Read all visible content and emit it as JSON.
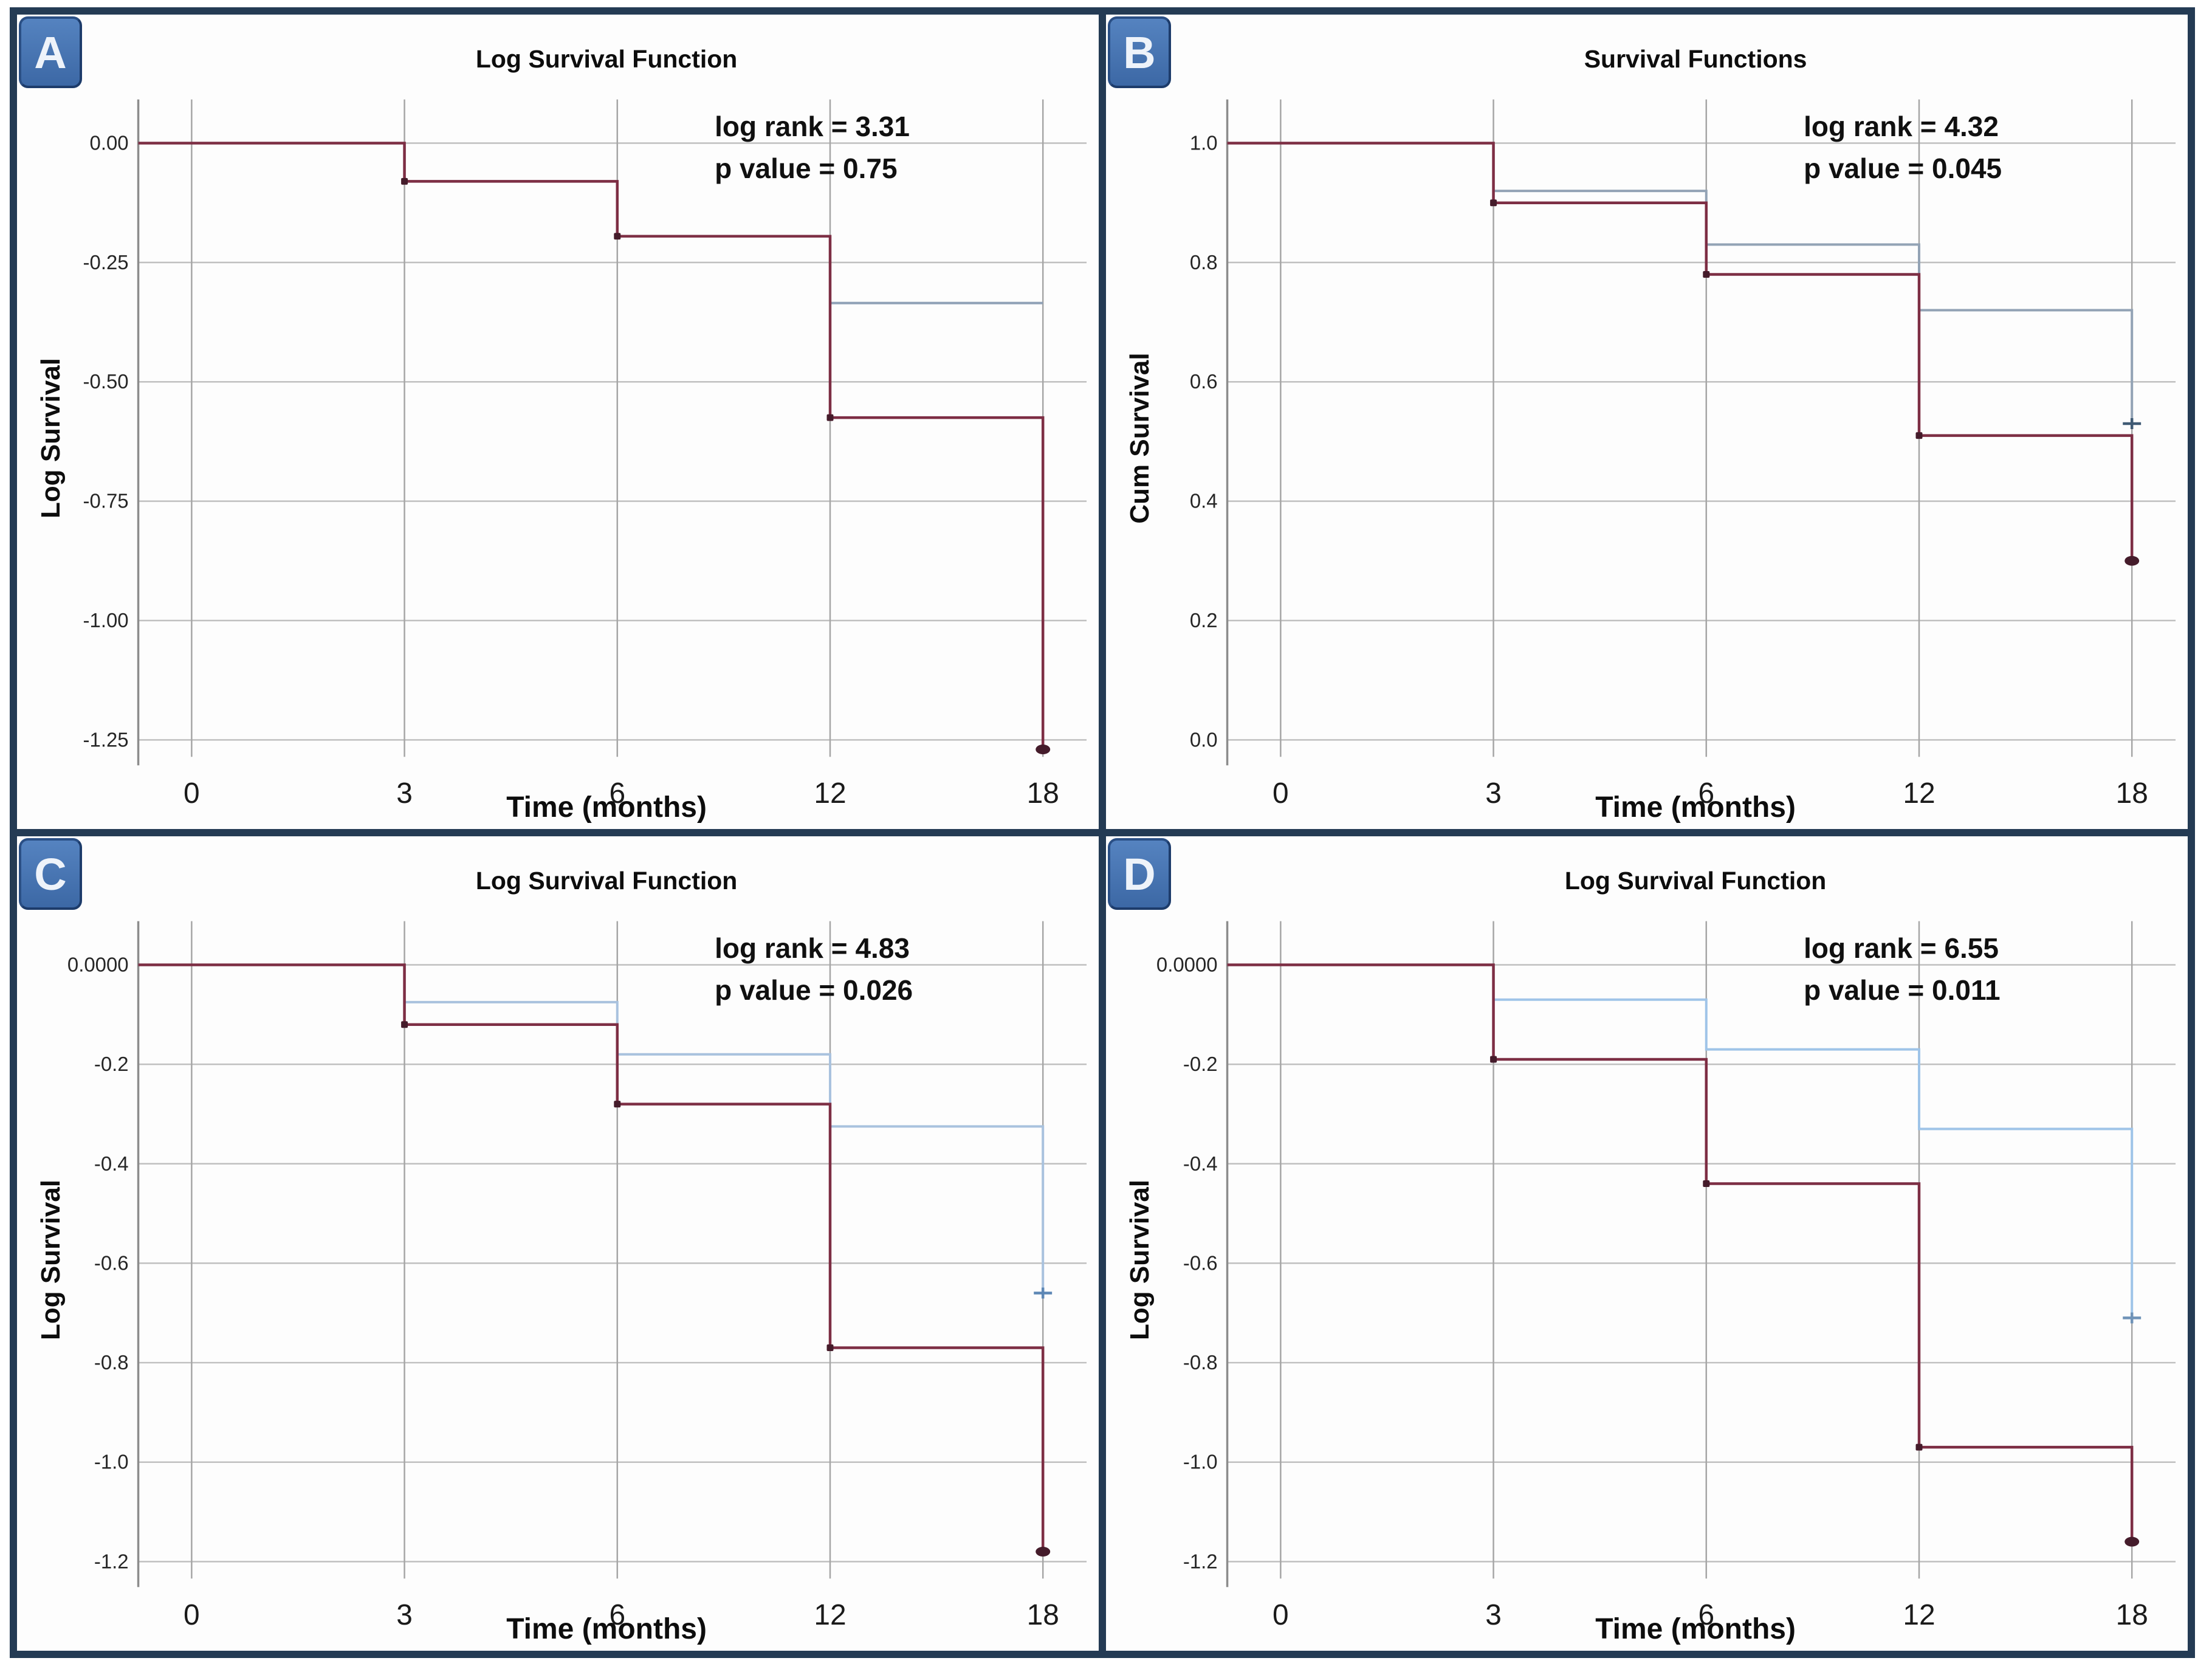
{
  "colors": {
    "frame": "#243b54",
    "badge_fill": "#4273b0",
    "badge_border": "#2a4f85",
    "h_gridline": "#c0c0c0",
    "v_gridline": "#a6a6a6",
    "axis": "#8c8c8c",
    "tick_text": "#262626",
    "red_curve": "#7d2e44",
    "marker_dark": "#451c2b"
  },
  "chart_data": [
    {
      "panel": "A",
      "type": "line",
      "title": "Log Survival Function",
      "stats": [
        "log rank = 3.31",
        "p value = 0.75"
      ],
      "xlabel": "Time (months)",
      "ylabel": "Log Survival",
      "x_values": [
        0,
        3,
        6,
        12,
        18
      ],
      "x_ticks": [
        "0",
        "3",
        "6",
        "12",
        "18"
      ],
      "y_ticks": [
        {
          "v": 0,
          "label": "0.00"
        },
        {
          "v": -0.25,
          "label": "-0.25"
        },
        {
          "v": -0.5,
          "label": "-0.50"
        },
        {
          "v": -0.75,
          "label": "-0.75"
        },
        {
          "v": -1.0,
          "label": "-1.00"
        },
        {
          "v": -1.25,
          "label": "-1.25"
        }
      ],
      "series": [
        {
          "name": "survival-curve-blue",
          "color": "#8fa1b6",
          "width": 4,
          "points": [
            [
              0,
              0
            ],
            [
              3,
              0
            ],
            [
              3,
              -0.08
            ],
            [
              6,
              -0.08
            ],
            [
              6,
              -0.195
            ],
            [
              12,
              -0.195
            ],
            [
              12,
              -0.335
            ],
            [
              18,
              -0.335
            ]
          ],
          "censors": [],
          "end_marker": null
        },
        {
          "name": "survival-curve-red",
          "color": "#7d2e44",
          "width": 4.5,
          "marker_color": "#451c2b",
          "points": [
            [
              0,
              0
            ],
            [
              3,
              0
            ],
            [
              3,
              -0.08
            ],
            [
              6,
              -0.08
            ],
            [
              6,
              -0.195
            ],
            [
              12,
              -0.195
            ],
            [
              12,
              -0.575
            ],
            [
              18,
              -0.575
            ],
            [
              18,
              -1.27
            ]
          ],
          "censors": [
            [
              3,
              -0.08
            ],
            [
              6,
              -0.195
            ],
            [
              12,
              -0.575
            ]
          ],
          "end_marker": {
            "x": 18,
            "y": -1.27,
            "shape": "dot"
          }
        }
      ]
    },
    {
      "panel": "B",
      "type": "line",
      "title": "Survival Functions",
      "stats": [
        "log rank = 4.32",
        "p value = 0.045"
      ],
      "xlabel": "Time (months)",
      "ylabel": "Cum Survival",
      "x_values": [
        0,
        3,
        6,
        12,
        18
      ],
      "x_ticks": [
        "0",
        "3",
        "6",
        "12",
        "18"
      ],
      "y_ticks": [
        {
          "v": 1.0,
          "label": "1.0"
        },
        {
          "v": 0.8,
          "label": "0.8"
        },
        {
          "v": 0.6,
          "label": "0.6"
        },
        {
          "v": 0.4,
          "label": "0.4"
        },
        {
          "v": 0.2,
          "label": "0.2"
        },
        {
          "v": 0.0,
          "label": "0.0"
        }
      ],
      "series": [
        {
          "name": "survival-curve-blue",
          "color": "#93a3b5",
          "width": 4,
          "marker_color": "#3f5a74",
          "points": [
            [
              0,
              1
            ],
            [
              3,
              1
            ],
            [
              3,
              0.92
            ],
            [
              6,
              0.92
            ],
            [
              6,
              0.83
            ],
            [
              12,
              0.83
            ],
            [
              12,
              0.72
            ],
            [
              18,
              0.72
            ],
            [
              18,
              0.53
            ]
          ],
          "censors": [],
          "end_marker": {
            "x": 18,
            "y": 0.53,
            "shape": "plus"
          }
        },
        {
          "name": "survival-curve-red",
          "color": "#7d2e44",
          "width": 4.5,
          "marker_color": "#451c2b",
          "points": [
            [
              0,
              1
            ],
            [
              3,
              1
            ],
            [
              3,
              0.9
            ],
            [
              6,
              0.9
            ],
            [
              6,
              0.78
            ],
            [
              12,
              0.78
            ],
            [
              12,
              0.51
            ],
            [
              18,
              0.51
            ],
            [
              18,
              0.3
            ]
          ],
          "censors": [
            [
              3,
              0.9
            ],
            [
              6,
              0.78
            ],
            [
              12,
              0.51
            ]
          ],
          "end_marker": {
            "x": 18,
            "y": 0.3,
            "shape": "dot"
          }
        }
      ]
    },
    {
      "panel": "C",
      "type": "line",
      "title": "Log Survival Function",
      "stats": [
        "log rank = 4.83",
        "p value = 0.026"
      ],
      "xlabel": "Time (months)",
      "ylabel": "Log Survival",
      "x_values": [
        0,
        3,
        6,
        12,
        18
      ],
      "x_ticks": [
        "0",
        "3",
        "6",
        "12",
        "18"
      ],
      "y_ticks": [
        {
          "v": 0,
          "label": "0.0000"
        },
        {
          "v": -0.2,
          "label": "-0.2"
        },
        {
          "v": -0.4,
          "label": "-0.4"
        },
        {
          "v": -0.6,
          "label": "-0.6"
        },
        {
          "v": -0.8,
          "label": "-0.8"
        },
        {
          "v": -1.0,
          "label": "-1.0"
        },
        {
          "v": -1.2,
          "label": "-1.2"
        }
      ],
      "series": [
        {
          "name": "survival-curve-blue",
          "color": "#a9c2de",
          "width": 4,
          "marker_color": "#5d87b5",
          "points": [
            [
              0,
              0
            ],
            [
              3,
              0
            ],
            [
              3,
              -0.075
            ],
            [
              6,
              -0.075
            ],
            [
              6,
              -0.18
            ],
            [
              12,
              -0.18
            ],
            [
              12,
              -0.325
            ],
            [
              18,
              -0.325
            ],
            [
              18,
              -0.66
            ]
          ],
          "censors": [],
          "end_marker": {
            "x": 18,
            "y": -0.66,
            "shape": "plus"
          }
        },
        {
          "name": "survival-curve-red",
          "color": "#7d2e44",
          "width": 4.5,
          "marker_color": "#451c2b",
          "points": [
            [
              0,
              0
            ],
            [
              3,
              0
            ],
            [
              3,
              -0.12
            ],
            [
              6,
              -0.12
            ],
            [
              6,
              -0.28
            ],
            [
              12,
              -0.28
            ],
            [
              12,
              -0.77
            ],
            [
              18,
              -0.77
            ],
            [
              18,
              -1.18
            ]
          ],
          "censors": [
            [
              3,
              -0.12
            ],
            [
              6,
              -0.28
            ],
            [
              12,
              -0.77
            ]
          ],
          "end_marker": {
            "x": 18,
            "y": -1.18,
            "shape": "dot"
          }
        }
      ]
    },
    {
      "panel": "D",
      "type": "line",
      "title": "Log Survival Function",
      "stats": [
        "log rank = 6.55",
        "p value = 0.011"
      ],
      "xlabel": "Time (months)",
      "ylabel": "Log Survival",
      "x_values": [
        0,
        3,
        6,
        12,
        18
      ],
      "x_ticks": [
        "0",
        "3",
        "6",
        "12",
        "18"
      ],
      "y_ticks": [
        {
          "v": 0,
          "label": "0.0000"
        },
        {
          "v": -0.2,
          "label": "-0.2"
        },
        {
          "v": -0.4,
          "label": "-0.4"
        },
        {
          "v": -0.6,
          "label": "-0.6"
        },
        {
          "v": -0.8,
          "label": "-0.8"
        },
        {
          "v": -1.0,
          "label": "-1.0"
        },
        {
          "v": -1.2,
          "label": "-1.2"
        }
      ],
      "series": [
        {
          "name": "survival-curve-blue",
          "color": "#9fc4e8",
          "width": 4,
          "marker_color": "#6f93b8",
          "points": [
            [
              0,
              0
            ],
            [
              3,
              0
            ],
            [
              3,
              -0.07
            ],
            [
              6,
              -0.07
            ],
            [
              6,
              -0.17
            ],
            [
              12,
              -0.17
            ],
            [
              12,
              -0.33
            ],
            [
              18,
              -0.33
            ],
            [
              18,
              -0.71
            ]
          ],
          "censors": [],
          "end_marker": {
            "x": 18,
            "y": -0.71,
            "shape": "plus"
          }
        },
        {
          "name": "survival-curve-red",
          "color": "#7d2e44",
          "width": 4.5,
          "marker_color": "#451c2b",
          "points": [
            [
              0,
              0
            ],
            [
              3,
              0
            ],
            [
              3,
              -0.19
            ],
            [
              6,
              -0.19
            ],
            [
              6,
              -0.44
            ],
            [
              12,
              -0.44
            ],
            [
              12,
              -0.97
            ],
            [
              18,
              -0.97
            ],
            [
              18,
              -1.16
            ]
          ],
          "censors": [
            [
              3,
              -0.19
            ],
            [
              6,
              -0.44
            ],
            [
              12,
              -0.97
            ]
          ],
          "end_marker": {
            "x": 18,
            "y": -1.16,
            "shape": "dot"
          }
        }
      ]
    }
  ]
}
